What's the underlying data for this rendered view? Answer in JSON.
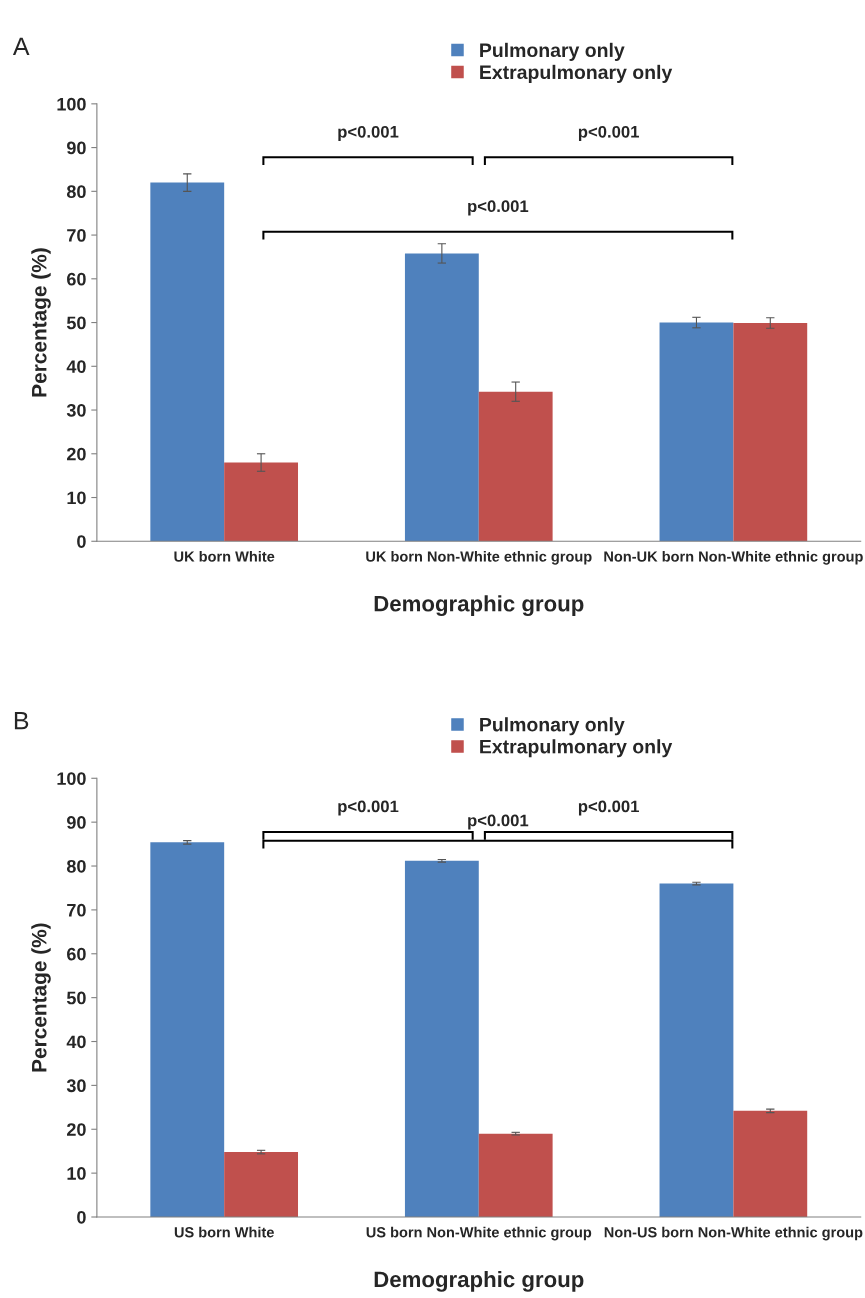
{
  "chart_data": [
    {
      "type": "bar",
      "xlabel": "Demographic group",
      "ylabel": "Percentage (%)",
      "categories": [
        "UK born White",
        "UK born Non-White ethnic group",
        "Non-UK born Non-White ethnic group"
      ],
      "series": [
        {
          "name": "Pulmonary only",
          "color": "#4f81bd",
          "values": [
            82,
            65.8,
            50
          ],
          "errors": [
            2,
            2.2,
            1.2
          ]
        },
        {
          "name": "Extrapulmonary only",
          "color": "#c0504d",
          "values": [
            18,
            34.2,
            49.9
          ],
          "errors": [
            2,
            2.2,
            1.2
          ]
        }
      ],
      "ylim": [
        0,
        100
      ],
      "yticks": [
        0,
        10,
        20,
        30,
        40,
        50,
        60,
        70,
        80,
        90,
        100
      ],
      "legend": "top",
      "grid": false,
      "annotations": [
        "A",
        "p<0.001",
        "p<0.001",
        "p<0.001"
      ]
    },
    {
      "type": "bar",
      "xlabel": "Demographic group",
      "ylabel": "Percentage (%)",
      "categories": [
        "US born White",
        "US born Non-White ethnic group",
        "Non-US born Non-White ethnic group"
      ],
      "series": [
        {
          "name": "Pulmonary only",
          "color": "#4f81bd",
          "values": [
            85.4,
            81.2,
            76
          ],
          "errors": [
            0.4,
            0.3,
            0.3
          ]
        },
        {
          "name": "Extrapulmonary only",
          "color": "#c0504d",
          "values": [
            14.8,
            19,
            24.2
          ],
          "errors": [
            0.4,
            0.3,
            0.4
          ]
        }
      ],
      "ylim": [
        0,
        100
      ],
      "yticks": [
        0,
        10,
        20,
        30,
        40,
        50,
        60,
        70,
        80,
        90,
        100
      ],
      "legend": "top",
      "grid": false,
      "annotations": [
        "B",
        "p<0.001",
        "p<0.001",
        "p<0.001"
      ]
    }
  ]
}
